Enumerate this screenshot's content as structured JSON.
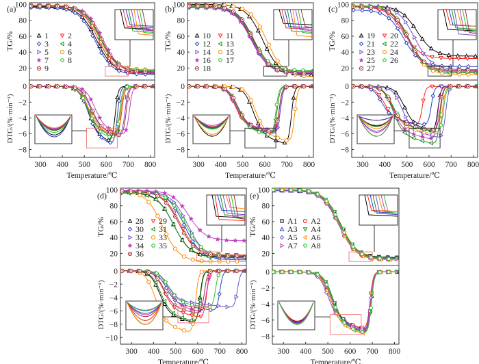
{
  "figure": {
    "x_axis_label": "Temperature/℃",
    "tg_label": "TG/%",
    "dtg_label": "DTG/(%·min⁻¹)"
  },
  "chart_data": [
    {
      "panel": "(a)",
      "type": "line",
      "xlabel": "Temperature/℃",
      "xlim": [
        250,
        820
      ],
      "xticks": [
        300,
        400,
        500,
        600,
        700,
        800
      ],
      "tg": {
        "ylabel": "TG/%",
        "ylim": [
          5,
          102
        ],
        "yticks": [
          20,
          40,
          60,
          80,
          100
        ]
      },
      "dtg": {
        "ylabel": "DTG/(%·min⁻¹)",
        "ylim": [
          -9,
          0.8
        ],
        "yticks": [
          0,
          -2,
          -4,
          -6,
          -8
        ]
      },
      "legend": "left",
      "zoom_boxes": {
        "tg": "red",
        "dtg": "red"
      },
      "series": [
        {
          "name": "1",
          "color": "#000000",
          "marker": "triangle-up",
          "tg_mid": 555,
          "tg_res": 14,
          "tg_start": 97,
          "dtg_onset": 470,
          "dtg_min": -7.3,
          "dtg_end": 640
        },
        {
          "name": "2",
          "color": "#ff2020",
          "marker": "triangle-down",
          "tg_mid": 565,
          "tg_res": 13,
          "tg_start": 98,
          "dtg_onset": 465,
          "dtg_min": -6.4,
          "dtg_end": 670
        },
        {
          "name": "3",
          "color": "#2040c0",
          "marker": "diamond",
          "tg_mid": 550,
          "tg_res": 12,
          "tg_start": 96,
          "dtg_onset": 470,
          "dtg_min": -7.6,
          "dtg_end": 650
        },
        {
          "name": "4",
          "color": "#1a8a1a",
          "marker": "triangle-left",
          "tg_mid": 570,
          "tg_res": 16,
          "tg_start": 98,
          "dtg_onset": 470,
          "dtg_min": -6.6,
          "dtg_end": 665
        },
        {
          "name": "5",
          "color": "#7050d0",
          "marker": "triangle-right",
          "tg_mid": 575,
          "tg_res": 15,
          "tg_start": 98,
          "dtg_onset": 480,
          "dtg_min": -6.4,
          "dtg_end": 685
        },
        {
          "name": "6",
          "color": "#ff8c00",
          "marker": "circle",
          "tg_mid": 568,
          "tg_res": 18,
          "tg_start": 99,
          "dtg_onset": 470,
          "dtg_min": -6.2,
          "dtg_end": 665
        },
        {
          "name": "7",
          "color": "#c040c0",
          "marker": "star",
          "tg_mid": 585,
          "tg_res": 14,
          "tg_start": 98,
          "dtg_onset": 500,
          "dtg_min": -6.3,
          "dtg_end": 705
        },
        {
          "name": "8",
          "color": "#30c030",
          "marker": "pentagon",
          "tg_mid": 572,
          "tg_res": 17,
          "tg_start": 98,
          "dtg_onset": 470,
          "dtg_min": -6.9,
          "dtg_end": 660
        },
        {
          "name": "9",
          "color": "#a03030",
          "marker": "circle-dot",
          "tg_mid": 578,
          "tg_res": 15,
          "tg_start": 98,
          "dtg_onset": 485,
          "dtg_min": -6.5,
          "dtg_end": 690
        }
      ]
    },
    {
      "panel": "(b)",
      "type": "line",
      "xlabel": "Temperature/℃",
      "xlim": [
        250,
        820
      ],
      "xticks": [
        300,
        400,
        500,
        600,
        700,
        800
      ],
      "tg": {
        "ylabel": "TG/%",
        "ylim": [
          5,
          102
        ],
        "yticks": [
          20,
          40,
          60,
          80,
          100
        ]
      },
      "dtg": {
        "ylabel": "DTG/(%·min⁻¹)",
        "ylim": [
          -9,
          0.8
        ],
        "yticks": [
          0,
          -2,
          -4,
          -6,
          -8
        ]
      },
      "legend": "left",
      "zoom_boxes": {
        "tg": "black",
        "dtg": "black"
      },
      "series": [
        {
          "name": "10",
          "color": "#000000",
          "marker": "triangle-up",
          "tg_mid": 590,
          "tg_res": 11,
          "tg_start": 100,
          "dtg_onset": 500,
          "dtg_min": -7.5,
          "dtg_end": 720
        },
        {
          "name": "11",
          "color": "#ff2020",
          "marker": "triangle-down",
          "tg_mid": 540,
          "tg_res": 14,
          "tg_start": 97,
          "dtg_onset": 420,
          "dtg_min": -6.1,
          "dtg_end": 665
        },
        {
          "name": "12",
          "color": "#2040c0",
          "marker": "diamond",
          "tg_mid": 545,
          "tg_res": 13,
          "tg_start": 96,
          "dtg_onset": 430,
          "dtg_min": -6.2,
          "dtg_end": 670
        },
        {
          "name": "13",
          "color": "#1a8a1a",
          "marker": "triangle-left",
          "tg_mid": 545,
          "tg_res": 16,
          "tg_start": 97,
          "dtg_onset": 430,
          "dtg_min": -6.3,
          "dtg_end": 655
        },
        {
          "name": "14",
          "color": "#7050d0",
          "marker": "triangle-right",
          "tg_mid": 543,
          "tg_res": 14,
          "tg_start": 97,
          "dtg_onset": 425,
          "dtg_min": -6.0,
          "dtg_end": 670
        },
        {
          "name": "15",
          "color": "#ff8c00",
          "marker": "circle",
          "tg_mid": 610,
          "tg_res": 9,
          "tg_start": 99,
          "dtg_onset": 510,
          "dtg_min": -7.2,
          "dtg_end": 735
        },
        {
          "name": "16",
          "color": "#c040c0",
          "marker": "star",
          "tg_mid": 538,
          "tg_res": 15,
          "tg_start": 96,
          "dtg_onset": 420,
          "dtg_min": -5.8,
          "dtg_end": 665
        },
        {
          "name": "17",
          "color": "#30c030",
          "marker": "pentagon",
          "tg_mid": 548,
          "tg_res": 17,
          "tg_start": 97,
          "dtg_onset": 430,
          "dtg_min": -6.4,
          "dtg_end": 650
        },
        {
          "name": "18",
          "color": "#a03030",
          "marker": "circle-dot",
          "tg_mid": 550,
          "tg_res": 13,
          "tg_start": 98,
          "dtg_onset": 430,
          "dtg_min": -6.0,
          "dtg_end": 665
        }
      ]
    },
    {
      "panel": "(c)",
      "type": "line",
      "xlabel": "Temperature/℃",
      "xlim": [
        250,
        820
      ],
      "xticks": [
        300,
        400,
        500,
        600,
        700,
        800
      ],
      "tg": {
        "ylabel": "TG/%",
        "ylim": [
          5,
          102
        ],
        "yticks": [
          20,
          40,
          60,
          80,
          100
        ]
      },
      "dtg": {
        "ylabel": "DTG/(%·min⁻¹)",
        "ylim": [
          -9,
          0.8
        ],
        "yticks": [
          0,
          -2,
          -4,
          -6,
          -8
        ]
      },
      "legend": "left",
      "zoom_boxes": {
        "tg": "black",
        "dtg": "black"
      },
      "series": [
        {
          "name": "19",
          "color": "#000000",
          "marker": "triangle-up",
          "tg_mid": 545,
          "tg_res": 35,
          "tg_start": 98,
          "dtg_onset": 440,
          "dtg_min": -5.9,
          "dtg_end": 640
        },
        {
          "name": "20",
          "color": "#ff2020",
          "marker": "triangle-down",
          "tg_mid": 485,
          "tg_res": 32,
          "tg_start": 97,
          "dtg_onset": 350,
          "dtg_min": -5.0,
          "dtg_end": 570
        },
        {
          "name": "21",
          "color": "#2040c0",
          "marker": "diamond",
          "tg_mid": 485,
          "tg_res": 22,
          "tg_start": 93,
          "dtg_onset": 340,
          "dtg_min": -5.0,
          "dtg_end": 610
        },
        {
          "name": "22",
          "color": "#1a8a1a",
          "marker": "triangle-left",
          "tg_mid": 505,
          "tg_res": 14,
          "tg_start": 98,
          "dtg_onset": 390,
          "dtg_min": -7.5,
          "dtg_end": 650
        },
        {
          "name": "23",
          "color": "#7050d0",
          "marker": "triangle-right",
          "tg_mid": 535,
          "tg_res": 18,
          "tg_start": 98,
          "dtg_onset": 430,
          "dtg_min": -6.7,
          "dtg_end": 675
        },
        {
          "name": "24",
          "color": "#ff8c00",
          "marker": "circle",
          "tg_mid": 510,
          "tg_res": 12,
          "tg_start": 98,
          "dtg_onset": 390,
          "dtg_min": -6.3,
          "dtg_end": 660
        },
        {
          "name": "25",
          "color": "#c040c0",
          "marker": "star",
          "tg_mid": 505,
          "tg_res": 16,
          "tg_start": 97,
          "dtg_onset": 390,
          "dtg_min": -6.9,
          "dtg_end": 640
        },
        {
          "name": "26",
          "color": "#30c030",
          "marker": "pentagon",
          "tg_mid": 510,
          "tg_res": 15,
          "tg_start": 98,
          "dtg_onset": 390,
          "dtg_min": -6.0,
          "dtg_end": 665
        },
        {
          "name": "27",
          "color": "#a03030",
          "marker": "circle-dot",
          "tg_mid": 508,
          "tg_res": 17,
          "tg_start": 97,
          "dtg_onset": 385,
          "dtg_min": -5.8,
          "dtg_end": 650
        }
      ]
    },
    {
      "panel": "(d)",
      "type": "line",
      "xlabel": "Temperature/℃",
      "xlim": [
        250,
        820
      ],
      "xticks": [
        300,
        400,
        500,
        600,
        700,
        800
      ],
      "tg": {
        "ylabel": "TG/%",
        "ylim": [
          5,
          102
        ],
        "yticks": [
          20,
          40,
          60,
          80,
          100
        ]
      },
      "dtg": {
        "ylabel": "DTG/(%·min⁻¹)",
        "ylim": [
          -11,
          0.8
        ],
        "yticks": [
          0,
          -2,
          -4,
          -6,
          -8,
          -10
        ]
      },
      "legend": "left",
      "zoom_boxes": {
        "tg": "red",
        "dtg": "red"
      },
      "series": [
        {
          "name": "28",
          "color": "#000000",
          "marker": "triangle-up",
          "tg_mid": 490,
          "tg_res": 16,
          "tg_start": 97,
          "dtg_onset": 380,
          "dtg_min": -8.0,
          "dtg_end": 610
        },
        {
          "name": "29",
          "color": "#ff2020",
          "marker": "triangle-down",
          "tg_mid": 520,
          "tg_res": 18,
          "tg_start": 98,
          "dtg_onset": 400,
          "dtg_min": -7.2,
          "dtg_end": 640
        },
        {
          "name": "30",
          "color": "#2040c0",
          "marker": "diamond",
          "tg_mid": 540,
          "tg_res": 12,
          "tg_start": 98,
          "dtg_onset": 410,
          "dtg_min": -6.1,
          "dtg_end": 700
        },
        {
          "name": "31",
          "color": "#1a8a1a",
          "marker": "triangle-left",
          "tg_mid": 492,
          "tg_res": 15,
          "tg_start": 96,
          "dtg_onset": 385,
          "dtg_min": -7.8,
          "dtg_end": 612
        },
        {
          "name": "32",
          "color": "#7050d0",
          "marker": "triangle-right",
          "tg_mid": 555,
          "tg_res": 14,
          "tg_start": 98,
          "dtg_onset": 420,
          "dtg_min": -5.6,
          "dtg_end": 780
        },
        {
          "name": "33",
          "color": "#ff8c00",
          "marker": "circle",
          "tg_mid": 440,
          "tg_res": 10,
          "tg_start": 99,
          "dtg_onset": 360,
          "dtg_min": -9.5,
          "dtg_end": 590
        },
        {
          "name": "34",
          "color": "#c040c0",
          "marker": "star",
          "tg_mid": 560,
          "tg_res": 36,
          "tg_start": 99,
          "dtg_onset": 420,
          "dtg_min": -6.3,
          "dtg_end": 640
        },
        {
          "name": "35",
          "color": "#30c030",
          "marker": "pentagon",
          "tg_mid": 545,
          "tg_res": 17,
          "tg_start": 97,
          "dtg_onset": 420,
          "dtg_min": -5.7,
          "dtg_end": 680
        },
        {
          "name": "36",
          "color": "#a03030",
          "marker": "circle-dot",
          "tg_mid": 515,
          "tg_res": 17,
          "tg_start": 98,
          "dtg_onset": 400,
          "dtg_min": -6.6,
          "dtg_end": 630
        }
      ]
    },
    {
      "panel": "(e)",
      "type": "line",
      "xlabel": "Temperature/℃",
      "xlim": [
        250,
        820
      ],
      "xticks": [
        300,
        400,
        500,
        600,
        700,
        800
      ],
      "tg": {
        "ylabel": "TG/%",
        "ylim": [
          5,
          102
        ],
        "yticks": [
          20,
          40,
          60,
          80,
          100
        ]
      },
      "dtg": {
        "ylabel": "DTG/(%·min⁻¹)",
        "ylim": [
          -9,
          0.8
        ],
        "yticks": [
          0,
          -2,
          -4,
          -6,
          -8
        ]
      },
      "legend": "left",
      "zoom_boxes": {
        "tg": "red",
        "dtg": "red"
      },
      "series": [
        {
          "name": "A1",
          "color": "#000000",
          "marker": "square",
          "tg_mid": 555,
          "tg_res": 15,
          "tg_start": 99,
          "dtg_onset": 470,
          "dtg_min": -7.4,
          "dtg_end": 695
        },
        {
          "name": "A2",
          "color": "#ff2020",
          "marker": "circle",
          "tg_mid": 550,
          "tg_res": 12,
          "tg_start": 100,
          "dtg_onset": 460,
          "dtg_min": -7.3,
          "dtg_end": 690
        },
        {
          "name": "A3",
          "color": "#2040c0",
          "marker": "triangle-up",
          "tg_mid": 553,
          "tg_res": 13,
          "tg_start": 99,
          "dtg_onset": 470,
          "dtg_min": -7.6,
          "dtg_end": 695
        },
        {
          "name": "A4",
          "color": "#1a8a1a",
          "marker": "triangle-down",
          "tg_mid": 558,
          "tg_res": 14,
          "tg_start": 100,
          "dtg_onset": 475,
          "dtg_min": -7.8,
          "dtg_end": 695
        },
        {
          "name": "A5",
          "color": "#7050d0",
          "marker": "diamond",
          "tg_mid": 548,
          "tg_res": 14,
          "tg_start": 99,
          "dtg_onset": 455,
          "dtg_min": -7.5,
          "dtg_end": 692
        },
        {
          "name": "A6",
          "color": "#ff8c00",
          "marker": "triangle-left",
          "tg_mid": 552,
          "tg_res": 12,
          "tg_start": 100,
          "dtg_onset": 465,
          "dtg_min": -8.0,
          "dtg_end": 693
        },
        {
          "name": "A7",
          "color": "#c040c0",
          "marker": "triangle-right",
          "tg_mid": 554,
          "tg_res": 13,
          "tg_start": 100,
          "dtg_onset": 468,
          "dtg_min": -7.7,
          "dtg_end": 694
        },
        {
          "name": "A8",
          "color": "#30c030",
          "marker": "pentagon",
          "tg_mid": 556,
          "tg_res": 13,
          "tg_start": 100,
          "dtg_onset": 472,
          "dtg_min": -7.9,
          "dtg_end": 696
        }
      ]
    }
  ]
}
